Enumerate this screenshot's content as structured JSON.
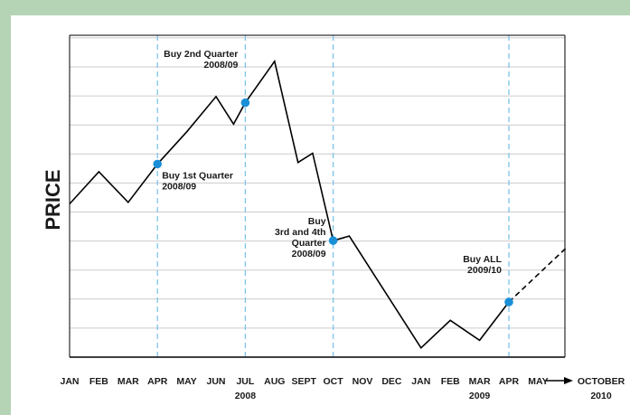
{
  "chart_data": {
    "type": "line",
    "ylabel": "PRICE",
    "xlabel": "",
    "categories": [
      "JAN",
      "FEB",
      "MAR",
      "APR",
      "MAY",
      "JUN",
      "JUL",
      "AUG",
      "SEPT",
      "OCT",
      "NOV",
      "DEC",
      "JAN",
      "FEB",
      "MAR",
      "APR",
      "MAY"
    ],
    "year_labels": [
      {
        "text": "2008",
        "category_index": 6
      },
      {
        "text": "2009",
        "category_index": 14
      }
    ],
    "arrow_end_label": [
      "OCTOBER",
      "2010"
    ],
    "grid": "horizontal",
    "ylim": [
      0,
      10.5
    ],
    "series": [
      {
        "style": "solid",
        "color": "#000000",
        "points": [
          [
            0.0,
            5.0
          ],
          [
            1.0,
            6.05
          ],
          [
            2.0,
            5.05
          ],
          [
            3.0,
            6.3
          ],
          [
            4.0,
            7.35
          ],
          [
            5.0,
            8.5
          ],
          [
            5.6,
            7.6
          ],
          [
            6.0,
            8.3
          ],
          [
            7.0,
            9.65
          ],
          [
            7.8,
            6.35
          ],
          [
            8.3,
            6.65
          ],
          [
            9.0,
            3.8
          ],
          [
            9.55,
            3.95
          ],
          [
            12.0,
            0.3
          ],
          [
            13.0,
            1.2
          ],
          [
            14.0,
            0.55
          ],
          [
            15.0,
            1.8
          ]
        ]
      },
      {
        "style": "dashed",
        "color": "#000000",
        "points": [
          [
            15.0,
            1.8
          ],
          [
            17.0,
            3.6
          ]
        ]
      }
    ],
    "buy_points": [
      {
        "x": 3.0,
        "y": 6.3,
        "label": [
          "Buy 1st Quarter",
          "2008/09"
        ],
        "label_pos": "below-right"
      },
      {
        "x": 6.0,
        "y": 8.3,
        "label": [
          "Buy 2nd Quarter",
          "2008/09"
        ],
        "label_pos": "above-left"
      },
      {
        "x": 9.0,
        "y": 3.8,
        "label": [
          "Buy",
          "3rd and 4th",
          "Quarter",
          "2008/09"
        ],
        "label_pos": "left"
      },
      {
        "x": 15.0,
        "y": 1.8,
        "label": [
          "Buy ALL",
          "2009/10"
        ],
        "label_pos": "above-left"
      }
    ],
    "colors": {
      "background": "#b5d3b5",
      "buy_marker": "#1a8fd8",
      "buy_guide": "#7cc4ec",
      "grid": "#cccccc",
      "line": "#000000"
    }
  }
}
